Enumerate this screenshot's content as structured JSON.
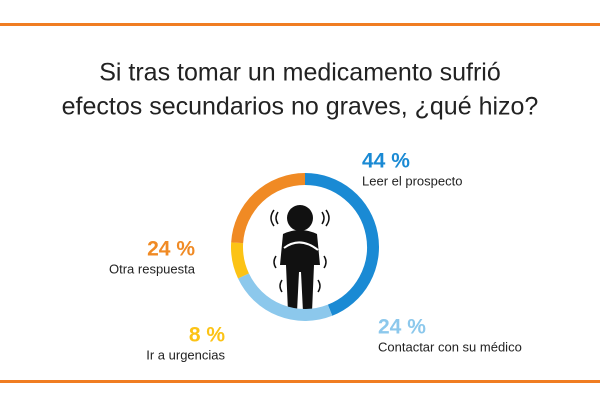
{
  "chart_data": {
    "type": "donut",
    "title_lines": [
      "Si tras tomar un medicamento sufrió",
      "efectos secundarios no graves, ¿qué hizo?"
    ],
    "categories": [
      "Leer el prospecto",
      "Contactar con su médico",
      "Ir a urgencias",
      "Otra respuesta"
    ],
    "values": [
      44,
      24,
      8,
      24
    ],
    "value_labels": [
      "44 %",
      "24 %",
      "8 %",
      "24 %"
    ],
    "colors": [
      "#1a8ad4",
      "#8cc8ec",
      "#fcc315",
      "#f08a24"
    ]
  }
}
